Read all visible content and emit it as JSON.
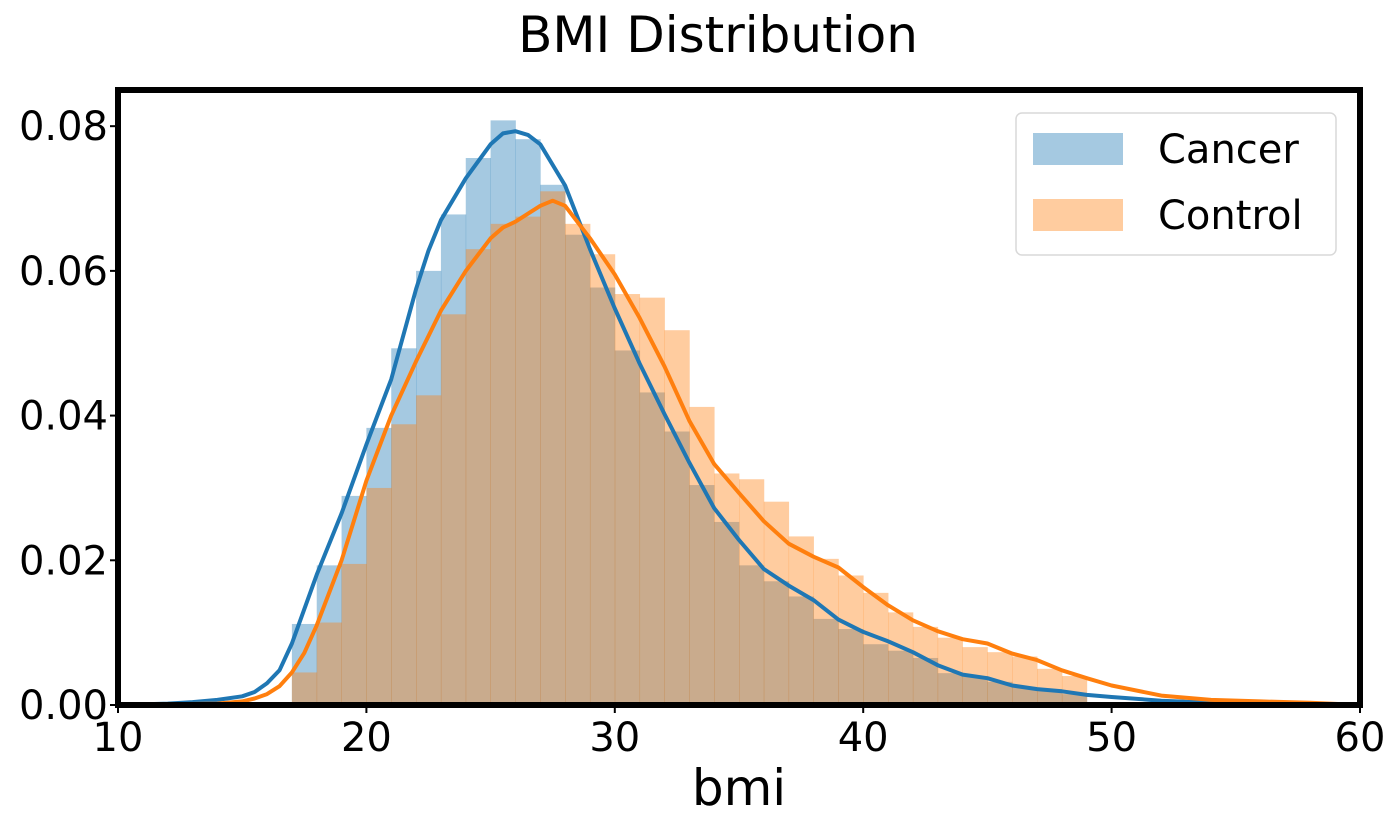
{
  "chart_data": {
    "type": "histogram",
    "title": "BMI Distribution",
    "xlabel": "bmi",
    "ylabel": "",
    "xlim": [
      10,
      60
    ],
    "ylim": [
      0,
      0.085
    ],
    "xticks": [
      "10",
      "20",
      "30",
      "40",
      "50",
      "60"
    ],
    "yticks": [
      "0.00",
      "0.02",
      "0.04",
      "0.06",
      "0.08"
    ],
    "grid": false,
    "legend_position": "top-right",
    "bin_edges": [
      17,
      18,
      19,
      20,
      21,
      22,
      23,
      24,
      25,
      26,
      27,
      28,
      29,
      30,
      31,
      32,
      33,
      34,
      35,
      36,
      37,
      38,
      39,
      40,
      41,
      42,
      43,
      44,
      45,
      46,
      47,
      48,
      49
    ],
    "series": [
      {
        "name": "Cancer",
        "color": "#1f77b4",
        "bar_color": "#a3c6e0",
        "hist": [
          0.0112,
          0.0193,
          0.0289,
          0.0383,
          0.0493,
          0.06,
          0.0678,
          0.0756,
          0.0808,
          0.0782,
          0.0719,
          0.065,
          0.0577,
          0.049,
          0.0432,
          0.0378,
          0.0304,
          0.0253,
          0.0193,
          0.0171,
          0.015,
          0.0119,
          0.0105,
          0.0084,
          0.0075,
          0.0065,
          0.0044,
          0.004,
          0.0032,
          0.0025,
          0.002,
          0.0015
        ],
        "kde_x": [
          10,
          12,
          13,
          14,
          15,
          15.5,
          16,
          16.5,
          17,
          18,
          19,
          20,
          21,
          22,
          22.5,
          23,
          24,
          25,
          25.5,
          26,
          26.5,
          27,
          28,
          29,
          30,
          31,
          32,
          33,
          34,
          35,
          36,
          37,
          38,
          39,
          40,
          41,
          42,
          43,
          44,
          45,
          46,
          47,
          48,
          49,
          50,
          52,
          54,
          56,
          58,
          60
        ],
        "kde_y": [
          0.0,
          0.0002,
          0.0004,
          0.0007,
          0.0012,
          0.0018,
          0.003,
          0.0048,
          0.0085,
          0.018,
          0.0265,
          0.036,
          0.045,
          0.0575,
          0.0628,
          0.067,
          0.0728,
          0.0775,
          0.079,
          0.0793,
          0.0788,
          0.0775,
          0.0718,
          0.063,
          0.0548,
          0.0472,
          0.0402,
          0.0335,
          0.0272,
          0.0228,
          0.0188,
          0.0165,
          0.0145,
          0.0118,
          0.0101,
          0.0088,
          0.0073,
          0.0055,
          0.0042,
          0.0037,
          0.0027,
          0.0022,
          0.0019,
          0.0014,
          0.0011,
          0.0006,
          0.0003,
          0.0002,
          0.0001,
          0.0
        ]
      },
      {
        "name": "Control",
        "color": "#ff7f0e",
        "bar_color": "#ffc999",
        "hist": [
          0.0045,
          0.0114,
          0.0195,
          0.03,
          0.0388,
          0.0428,
          0.054,
          0.063,
          0.0665,
          0.0675,
          0.071,
          0.0665,
          0.0623,
          0.0568,
          0.0563,
          0.0518,
          0.0412,
          0.032,
          0.0312,
          0.0281,
          0.0233,
          0.0202,
          0.0179,
          0.0155,
          0.0128,
          0.0108,
          0.0093,
          0.008,
          0.0073,
          0.0067,
          0.005,
          0.004
        ],
        "kde_x": [
          10,
          12,
          14,
          15,
          15.5,
          16,
          16.5,
          17,
          17.5,
          18,
          19,
          20,
          21,
          22,
          23,
          24,
          25,
          25.5,
          26,
          27,
          27.5,
          28,
          29,
          30,
          31,
          32,
          33,
          34,
          35,
          36,
          37,
          38,
          39,
          40,
          41,
          42,
          43,
          44,
          45,
          46,
          47,
          48,
          49,
          50,
          52,
          54,
          56,
          58,
          60
        ],
        "kde_y": [
          0.0,
          0.0001,
          0.0002,
          0.0005,
          0.0009,
          0.0015,
          0.0026,
          0.0045,
          0.0072,
          0.011,
          0.02,
          0.031,
          0.04,
          0.0475,
          0.0545,
          0.06,
          0.0645,
          0.066,
          0.0668,
          0.069,
          0.0697,
          0.069,
          0.0645,
          0.0595,
          0.0535,
          0.0468,
          0.0393,
          0.0333,
          0.0293,
          0.0254,
          0.0223,
          0.0205,
          0.019,
          0.0163,
          0.0138,
          0.0117,
          0.0102,
          0.0091,
          0.0085,
          0.0071,
          0.0062,
          0.0048,
          0.0037,
          0.0027,
          0.0013,
          0.0007,
          0.0005,
          0.0003,
          0.0
        ]
      }
    ]
  }
}
